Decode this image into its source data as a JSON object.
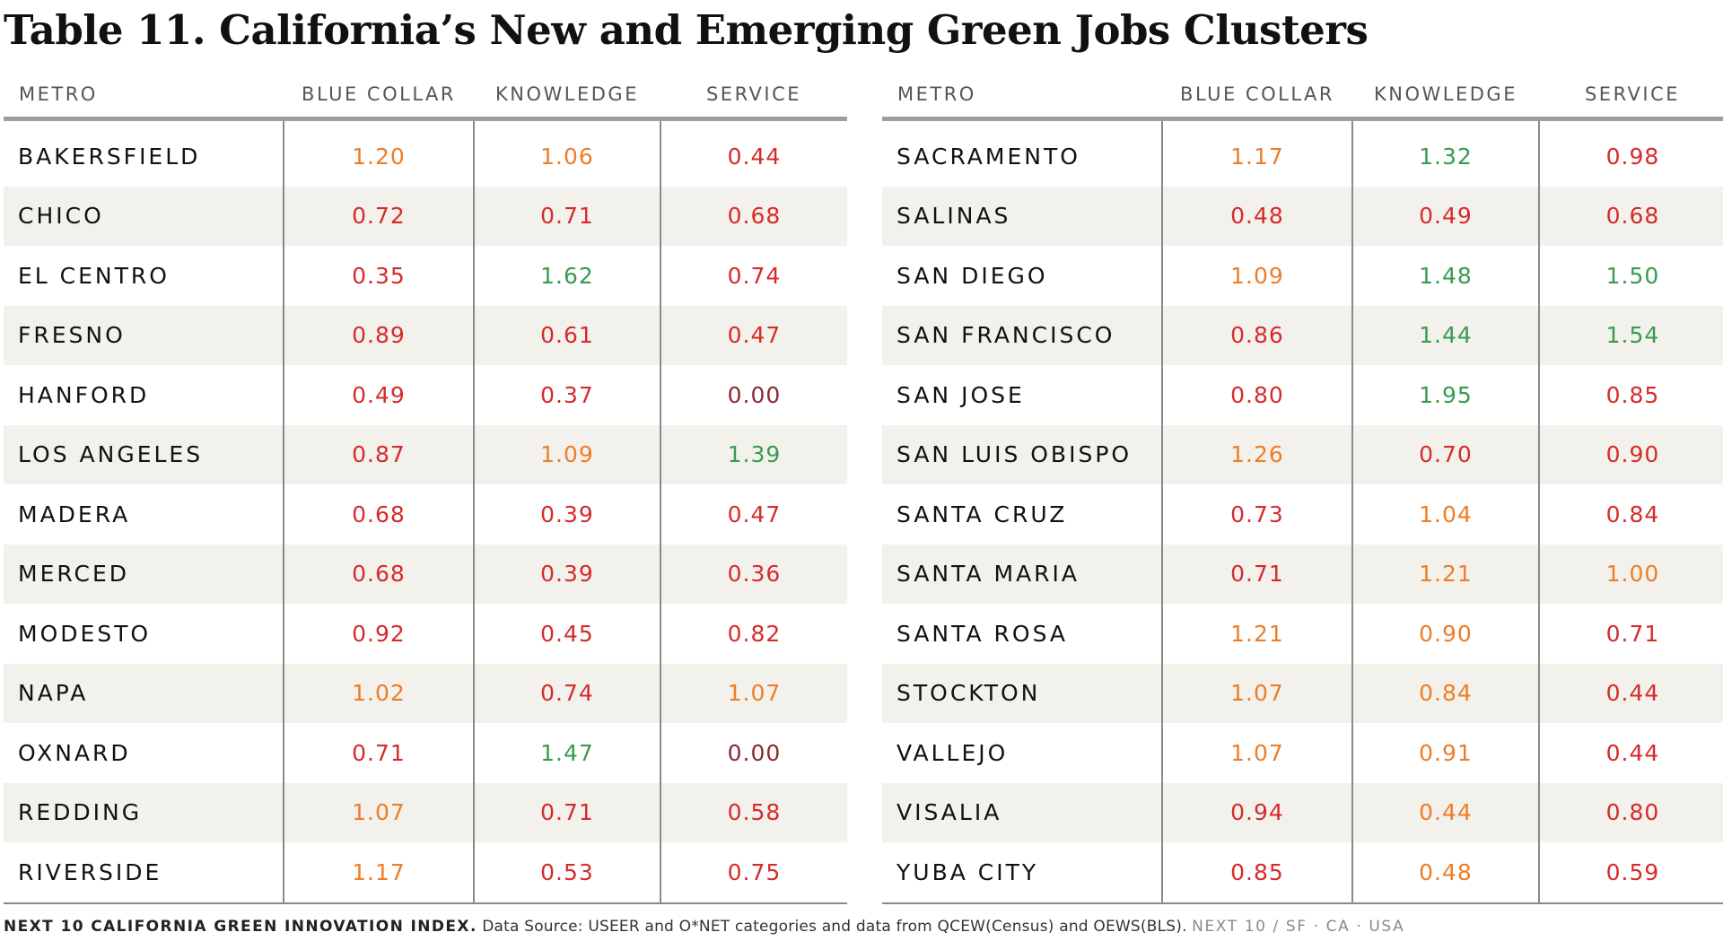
{
  "title": "Table 11. California’s New and Emerging Green Jobs Clusters",
  "headers": {
    "metro": "METRO",
    "blue_collar": "BLUE COLLAR",
    "knowledge": "KNOWLEDGE",
    "service": "SERVICE"
  },
  "colors": {
    "red": "#d62b2b",
    "orange": "#ee7d27",
    "green": "#389b4f",
    "dark": "#8b2a33",
    "row_band": "#f3f1ec",
    "rule": "#9e9e9e"
  },
  "left_rows": [
    {
      "metro": "BAKERSFIELD",
      "blue": "1.20",
      "blue_c": "orange",
      "know": "1.06",
      "know_c": "orange",
      "serv": "0.44",
      "serv_c": "red"
    },
    {
      "metro": "CHICO",
      "blue": "0.72",
      "blue_c": "red",
      "know": "0.71",
      "know_c": "red",
      "serv": "0.68",
      "serv_c": "red"
    },
    {
      "metro": "EL CENTRO",
      "blue": "0.35",
      "blue_c": "red",
      "know": "1.62",
      "know_c": "green",
      "serv": "0.74",
      "serv_c": "red"
    },
    {
      "metro": "FRESNO",
      "blue": "0.89",
      "blue_c": "red",
      "know": "0.61",
      "know_c": "red",
      "serv": "0.47",
      "serv_c": "red"
    },
    {
      "metro": "HANFORD",
      "blue": "0.49",
      "blue_c": "red",
      "know": "0.37",
      "know_c": "red",
      "serv": "0.00",
      "serv_c": "dark"
    },
    {
      "metro": "LOS ANGELES",
      "blue": "0.87",
      "blue_c": "red",
      "know": "1.09",
      "know_c": "orange",
      "serv": "1.39",
      "serv_c": "green"
    },
    {
      "metro": "MADERA",
      "blue": "0.68",
      "blue_c": "red",
      "know": "0.39",
      "know_c": "red",
      "serv": "0.47",
      "serv_c": "red"
    },
    {
      "metro": "MERCED",
      "blue": "0.68",
      "blue_c": "red",
      "know": "0.39",
      "know_c": "red",
      "serv": "0.36",
      "serv_c": "red"
    },
    {
      "metro": "MODESTO",
      "blue": "0.92",
      "blue_c": "red",
      "know": "0.45",
      "know_c": "red",
      "serv": "0.82",
      "serv_c": "red"
    },
    {
      "metro": "NAPA",
      "blue": "1.02",
      "blue_c": "orange",
      "know": "0.74",
      "know_c": "red",
      "serv": "1.07",
      "serv_c": "orange"
    },
    {
      "metro": "OXNARD",
      "blue": "0.71",
      "blue_c": "red",
      "know": "1.47",
      "know_c": "green",
      "serv": "0.00",
      "serv_c": "dark"
    },
    {
      "metro": "REDDING",
      "blue": "1.07",
      "blue_c": "orange",
      "know": "0.71",
      "know_c": "red",
      "serv": "0.58",
      "serv_c": "red"
    },
    {
      "metro": "RIVERSIDE",
      "blue": "1.17",
      "blue_c": "orange",
      "know": "0.53",
      "know_c": "red",
      "serv": "0.75",
      "serv_c": "red"
    }
  ],
  "right_rows": [
    {
      "metro": "SACRAMENTO",
      "blue": "1.17",
      "blue_c": "orange",
      "know": "1.32",
      "know_c": "green",
      "serv": "0.98",
      "serv_c": "red"
    },
    {
      "metro": "SALINAS",
      "blue": "0.48",
      "blue_c": "red",
      "know": "0.49",
      "know_c": "red",
      "serv": "0.68",
      "serv_c": "red"
    },
    {
      "metro": "SAN DIEGO",
      "blue": "1.09",
      "blue_c": "orange",
      "know": "1.48",
      "know_c": "green",
      "serv": "1.50",
      "serv_c": "green"
    },
    {
      "metro": "SAN FRANCISCO",
      "blue": "0.86",
      "blue_c": "red",
      "know": "1.44",
      "know_c": "green",
      "serv": "1.54",
      "serv_c": "green"
    },
    {
      "metro": "SAN JOSE",
      "blue": "0.80",
      "blue_c": "red",
      "know": "1.95",
      "know_c": "green",
      "serv": "0.85",
      "serv_c": "red"
    },
    {
      "metro": "SAN LUIS OBISPO",
      "blue": "1.26",
      "blue_c": "orange",
      "know": "0.70",
      "know_c": "red",
      "serv": "0.90",
      "serv_c": "red"
    },
    {
      "metro": "SANTA CRUZ",
      "blue": "0.73",
      "blue_c": "red",
      "know": "1.04",
      "know_c": "orange",
      "serv": "0.84",
      "serv_c": "red"
    },
    {
      "metro": "SANTA MARIA",
      "blue": "0.71",
      "blue_c": "red",
      "know": "1.21",
      "know_c": "orange",
      "serv": "1.00",
      "serv_c": "orange"
    },
    {
      "metro": "SANTA ROSA",
      "blue": "1.21",
      "blue_c": "orange",
      "know": "0.90",
      "know_c": "orange",
      "serv": "0.71",
      "serv_c": "red"
    },
    {
      "metro": "STOCKTON",
      "blue": "1.07",
      "blue_c": "orange",
      "know": "0.84",
      "know_c": "orange",
      "serv": "0.44",
      "serv_c": "red"
    },
    {
      "metro": "VALLEJO",
      "blue": "1.07",
      "blue_c": "orange",
      "know": "0.91",
      "know_c": "orange",
      "serv": "0.44",
      "serv_c": "red"
    },
    {
      "metro": "VISALIA",
      "blue": "0.94",
      "blue_c": "red",
      "know": "0.44",
      "know_c": "orange",
      "serv": "0.80",
      "serv_c": "red"
    },
    {
      "metro": "YUBA CITY",
      "blue": "0.85",
      "blue_c": "red",
      "know": "0.48",
      "know_c": "orange",
      "serv": "0.59",
      "serv_c": "red"
    }
  ],
  "footer": {
    "brand": "NEXT 10 CALIFORNIA GREEN INNOVATION INDEX.",
    "source": "Data Source: USEER and O*NET categories and data from QCEW(Census) and OEWS(BLS).",
    "org": "NEXT 10  /  SF · CA · USA"
  }
}
